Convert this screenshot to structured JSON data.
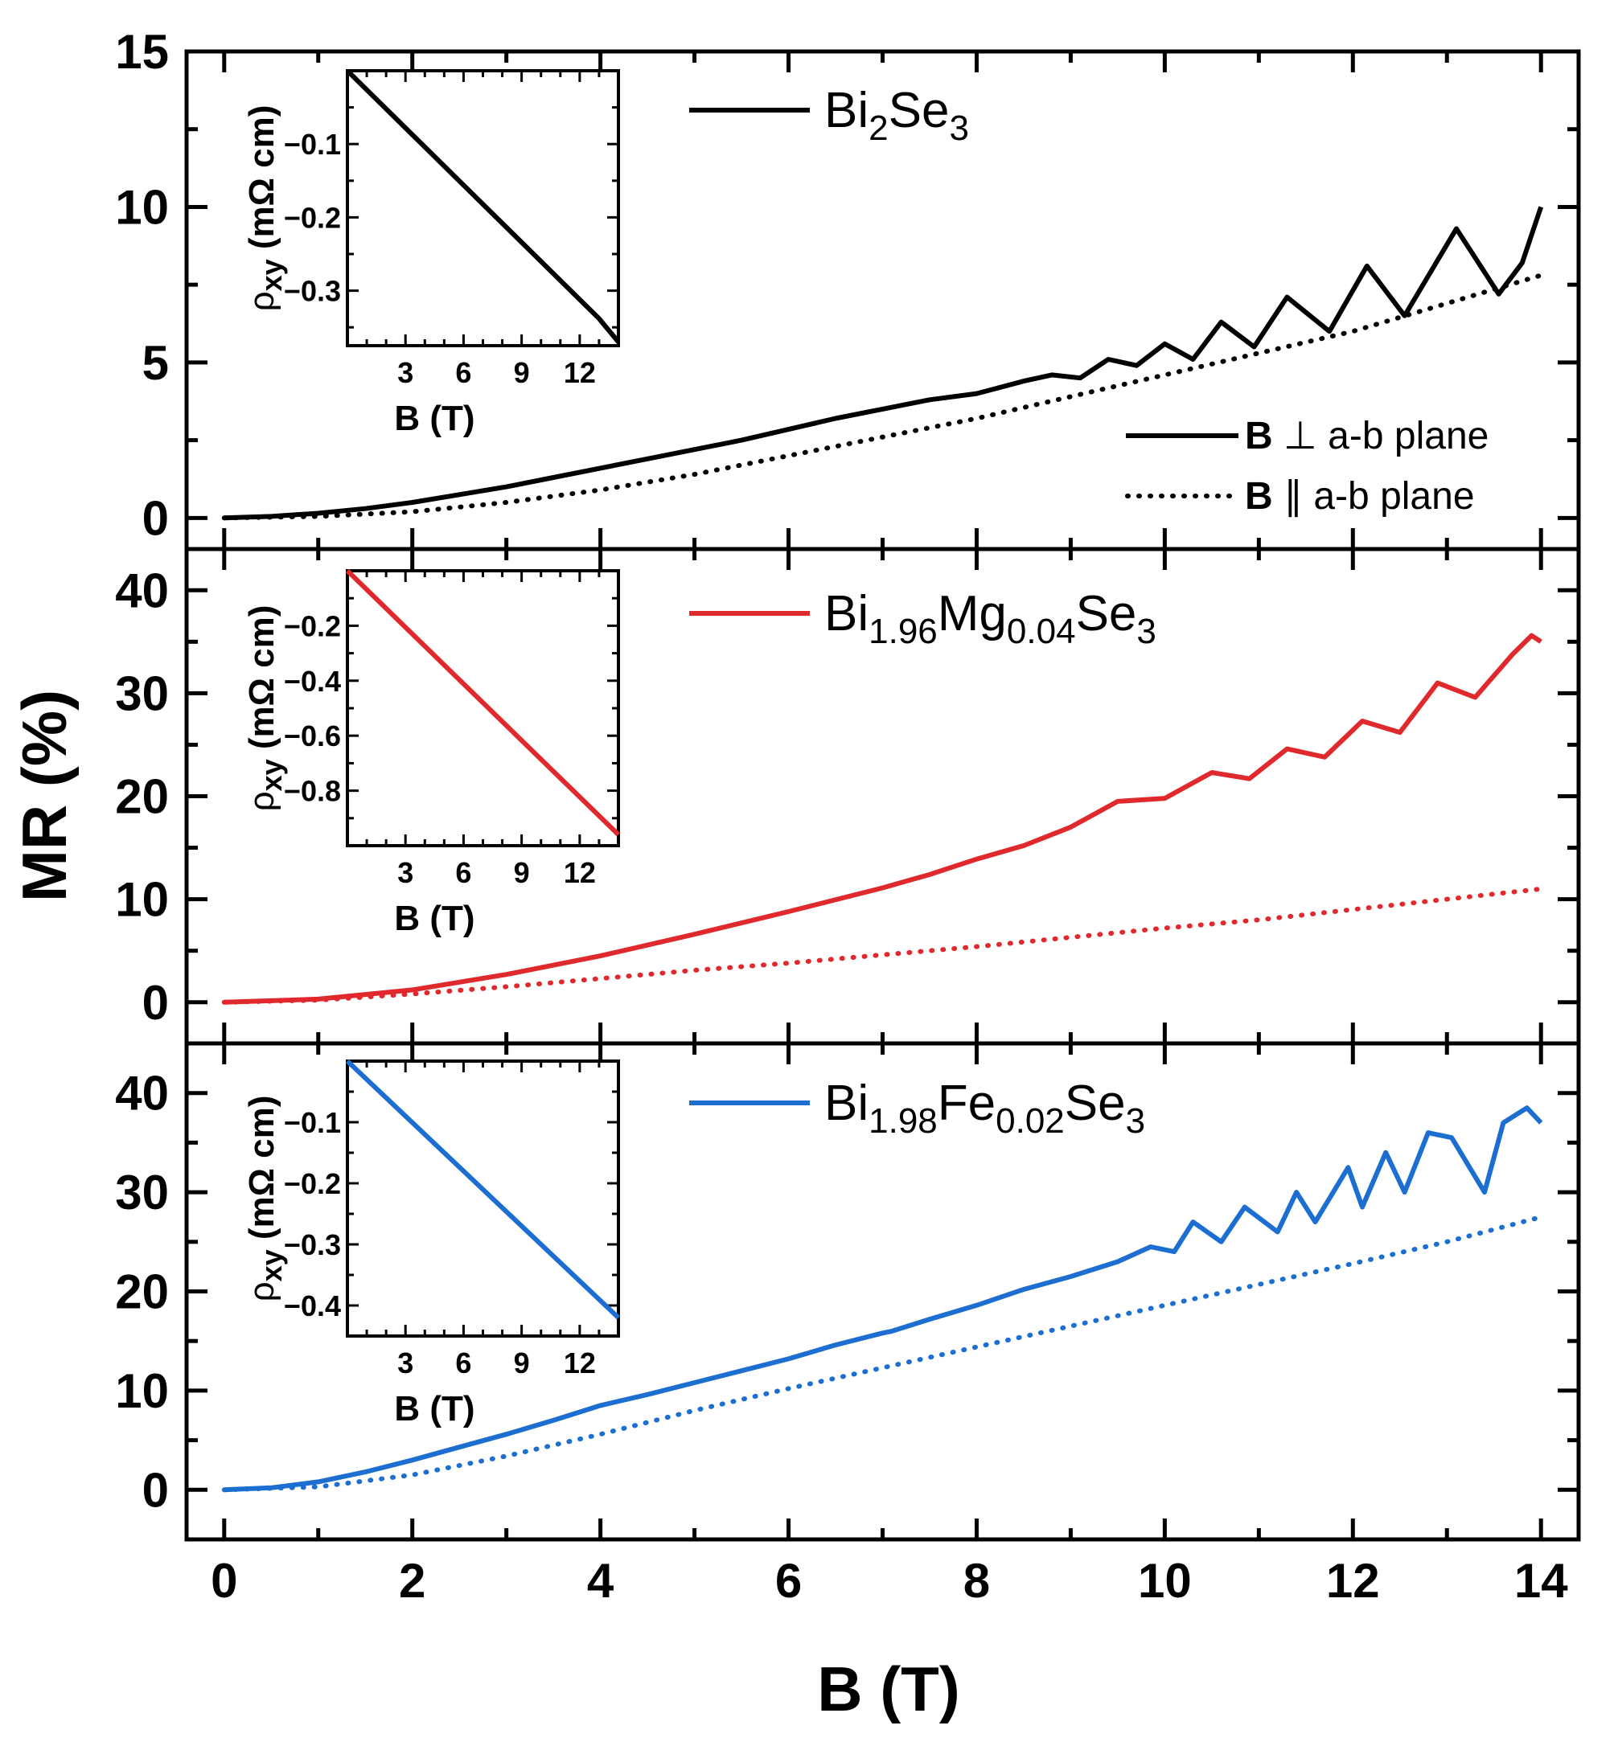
{
  "chart_data": {
    "type": "line",
    "xlabel": "B (T)",
    "ylabel": "MR (%)",
    "xlim": [
      -0.4,
      14.4
    ],
    "xticks": [
      0,
      2,
      4,
      6,
      8,
      10,
      12,
      14
    ],
    "xtick_labels": [
      "0",
      "2",
      "4",
      "6",
      "8",
      "10",
      "12",
      "14"
    ],
    "legend_lines": {
      "perp_b": "B",
      "perp_sym": "⊥",
      "perp_text": "a-b plane",
      "par_b": "B",
      "par_sym": "∥",
      "par_text": "a-b plane"
    },
    "panels": [
      {
        "id": "bi2se3",
        "color": "#000000",
        "legend_parts": [
          "Bi",
          "2",
          "Se",
          "3",
          "",
          ""
        ],
        "ylim": [
          -1.0,
          15.0
        ],
        "yticks": [
          0,
          5,
          10,
          15
        ],
        "ytick_labels": [
          "0",
          "5",
          "10",
          "15"
        ],
        "series": [
          {
            "name": "B ⊥ a-b plane",
            "style": "solid",
            "x": [
              0.0,
              0.5,
              1.0,
              1.5,
              2.0,
              2.5,
              3.0,
              3.5,
              4.0,
              4.5,
              5.0,
              5.5,
              6.0,
              6.5,
              7.0,
              7.5,
              8.0,
              8.5,
              8.8,
              9.1,
              9.4,
              9.7,
              10.0,
              10.3,
              10.6,
              10.95,
              11.3,
              11.75,
              12.15,
              12.55,
              13.1,
              13.55,
              13.8,
              14.0
            ],
            "y": [
              0.0,
              0.05,
              0.15,
              0.3,
              0.5,
              0.75,
              1.0,
              1.3,
              1.6,
              1.9,
              2.2,
              2.5,
              2.85,
              3.2,
              3.5,
              3.8,
              4.0,
              4.4,
              4.6,
              4.5,
              5.1,
              4.9,
              5.6,
              5.1,
              6.3,
              5.5,
              7.1,
              6.0,
              8.1,
              6.5,
              9.3,
              7.2,
              8.2,
              10.0
            ]
          },
          {
            "name": "B ∥ a-b plane",
            "style": "dotted",
            "x": [
              0,
              1,
              2,
              3,
              4,
              5,
              6,
              7,
              8,
              9,
              10,
              11,
              12,
              13,
              14
            ],
            "y": [
              0.0,
              0.05,
              0.2,
              0.5,
              0.9,
              1.4,
              2.0,
              2.6,
              3.2,
              3.9,
              4.6,
              5.3,
              6.0,
              6.9,
              7.8
            ]
          }
        ],
        "inset": {
          "xlabel": "B (T)",
          "ylabel_main": "ρ",
          "ylabel_sub": "xy",
          "ylabel_unit": "(mΩ cm)",
          "xlim": [
            0,
            14
          ],
          "ylim": [
            -0.375,
            0.0
          ],
          "xticks": [
            3,
            6,
            9,
            12
          ],
          "yticks": [
            -0.1,
            -0.2,
            -0.3
          ],
          "ytick_labels": [
            "−0.1",
            "−0.2",
            "−0.3"
          ],
          "x": [
            0,
            13,
            14
          ],
          "y": [
            0.0,
            -0.338,
            -0.37
          ]
        }
      },
      {
        "id": "bimgse",
        "color": "#e0292d",
        "legend_parts": [
          "Bi",
          "1.96",
          "Mg",
          "0.04",
          "Se",
          "3"
        ],
        "ylim": [
          -4,
          44
        ],
        "yticks": [
          0,
          10,
          20,
          30,
          40
        ],
        "ytick_labels": [
          "0",
          "10",
          "20",
          "30",
          "40"
        ],
        "series": [
          {
            "name": "B ⊥ a-b plane",
            "style": "solid",
            "x": [
              0,
              1,
              2,
              3,
              4,
              5,
              6,
              7,
              7.5,
              8,
              8.5,
              9,
              9.5,
              10,
              10.5,
              10.9,
              11.3,
              11.7,
              12.1,
              12.5,
              12.9,
              13.3,
              13.7,
              13.9,
              14.0
            ],
            "y": [
              0.0,
              0.3,
              1.2,
              2.7,
              4.5,
              6.6,
              8.8,
              11.1,
              12.4,
              13.9,
              15.2,
              17.0,
              19.5,
              19.8,
              22.3,
              21.7,
              24.6,
              23.8,
              27.3,
              26.2,
              31.0,
              29.6,
              33.8,
              35.6,
              35.0
            ]
          },
          {
            "name": "B ∥ a-b plane",
            "style": "dotted",
            "x": [
              0,
              1,
              2,
              3,
              4,
              5,
              6,
              7,
              8,
              9,
              10,
              11,
              12,
              13,
              14
            ],
            "y": [
              0.0,
              0.2,
              0.8,
              1.5,
              2.3,
              3.1,
              3.8,
              4.6,
              5.4,
              6.3,
              7.2,
              8.0,
              9.0,
              10.0,
              11.0
            ]
          }
        ],
        "inset": {
          "xlabel": "B (T)",
          "ylabel_main": "ρ",
          "ylabel_sub": "xy",
          "ylabel_unit": "(mΩ cm)",
          "xlim": [
            0,
            14
          ],
          "ylim": [
            -1.0,
            0.0
          ],
          "xticks": [
            3,
            6,
            9,
            12
          ],
          "yticks": [
            -0.2,
            -0.4,
            -0.6,
            -0.8
          ],
          "ytick_labels": [
            "−0.2",
            "−0.4",
            "−0.6",
            "−0.8"
          ],
          "x": [
            0,
            14
          ],
          "y": [
            0.0,
            -0.96
          ]
        }
      },
      {
        "id": "bifese",
        "color": "#1c6fd0",
        "legend_parts": [
          "Bi",
          "1.98",
          "Fe",
          "0.02",
          "Se",
          "3"
        ],
        "ylim": [
          -5,
          45
        ],
        "yticks": [
          0,
          10,
          20,
          30,
          40
        ],
        "ytick_labels": [
          "0",
          "10",
          "20",
          "30",
          "40"
        ],
        "series": [
          {
            "name": "B ⊥ a-b plane",
            "style": "solid",
            "x": [
              0,
              0.5,
              1.0,
              1.5,
              2.0,
              2.5,
              3.0,
              3.5,
              3.9,
              4.0,
              4.5,
              5.0,
              5.5,
              6.0,
              6.5,
              7.0,
              7.1,
              7.5,
              8.0,
              8.5,
              9.0,
              9.5,
              9.85,
              10.1,
              10.3,
              10.6,
              10.85,
              11.2,
              11.4,
              11.6,
              11.95,
              12.1,
              12.35,
              12.55,
              12.8,
              13.05,
              13.4,
              13.6,
              13.85,
              14.0
            ],
            "y": [
              0.0,
              0.2,
              0.8,
              1.8,
              3.0,
              4.3,
              5.6,
              7.0,
              8.2,
              8.5,
              9.6,
              10.8,
              12.0,
              13.2,
              14.6,
              15.8,
              16.0,
              17.2,
              18.6,
              20.2,
              21.5,
              23.0,
              24.5,
              24.0,
              27.0,
              25.0,
              28.5,
              26.0,
              30.0,
              27.0,
              32.5,
              28.5,
              34.0,
              30.0,
              36.0,
              35.5,
              30.0,
              37.0,
              38.5,
              37.0
            ]
          },
          {
            "name": "B ∥ a-b plane",
            "style": "dotted",
            "x": [
              0,
              1,
              2,
              3,
              4,
              5,
              6,
              7,
              8,
              9,
              10,
              11,
              12,
              13,
              14
            ],
            "y": [
              0.0,
              0.3,
              1.5,
              3.4,
              5.6,
              8.0,
              10.2,
              12.3,
              14.4,
              16.5,
              18.6,
              20.7,
              22.8,
              25.0,
              27.5
            ]
          }
        ],
        "inset": {
          "xlabel": "B (T)",
          "ylabel_main": "ρ",
          "ylabel_sub": "xy",
          "ylabel_unit": "(mΩ cm)",
          "xlim": [
            0,
            14
          ],
          "ylim": [
            -0.45,
            0.0
          ],
          "xticks": [
            3,
            6,
            9,
            12
          ],
          "yticks": [
            -0.1,
            -0.2,
            -0.3,
            -0.4
          ],
          "ytick_labels": [
            "−0.1",
            "−0.2",
            "−0.3",
            "−0.4"
          ],
          "x": [
            0,
            14
          ],
          "y": [
            0.0,
            -0.42
          ]
        }
      }
    ]
  }
}
